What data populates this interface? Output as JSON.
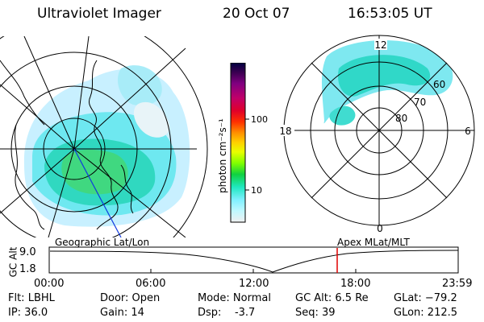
{
  "header": {
    "instrument": "Ultraviolet Imager",
    "date": "20 Oct 07",
    "time": "16:53:05 UT"
  },
  "colorbar": {
    "unit_label": "photon cm⁻²s⁻¹",
    "ticks": [
      "100",
      "10"
    ],
    "colors": [
      "#000040",
      "#3a0050",
      "#800080",
      "#c0006a",
      "#e0002a",
      "#ff3000",
      "#ff9000",
      "#ffd000",
      "#e8ff00",
      "#80ff00",
      "#10d040",
      "#20e8c0",
      "#80f0ff",
      "#c0f8ff",
      "#f0f0f0"
    ]
  },
  "polar": {
    "top_label": "12",
    "left_label": "18",
    "right_label": "6",
    "bottom_label": "0",
    "ring_labels": [
      "60",
      "70",
      "80"
    ]
  },
  "timeline": {
    "left_title": "Geographic Lat/Lon",
    "right_title": "Apex MLat/MLT",
    "axis_label": "GC Alt",
    "y_ticks": [
      "9.0",
      "1.8"
    ],
    "x_ticks": [
      "00:00",
      "06:00",
      "12:00",
      "18:00",
      "23:59"
    ],
    "marker_color": "#e00000"
  },
  "status": {
    "flt": "Flt: LBHL",
    "ip": "IP: 36.0",
    "door": "Door: Open",
    "gain": "Gain: 14",
    "mode": "Mode: Normal",
    "dsp": "Dsp:    -3.7",
    "gcalt": "GC Alt: 6.5 Re",
    "seq": "Seq: 39",
    "glat": "GLat: −79.2",
    "glon": "GLon: 212.5"
  }
}
